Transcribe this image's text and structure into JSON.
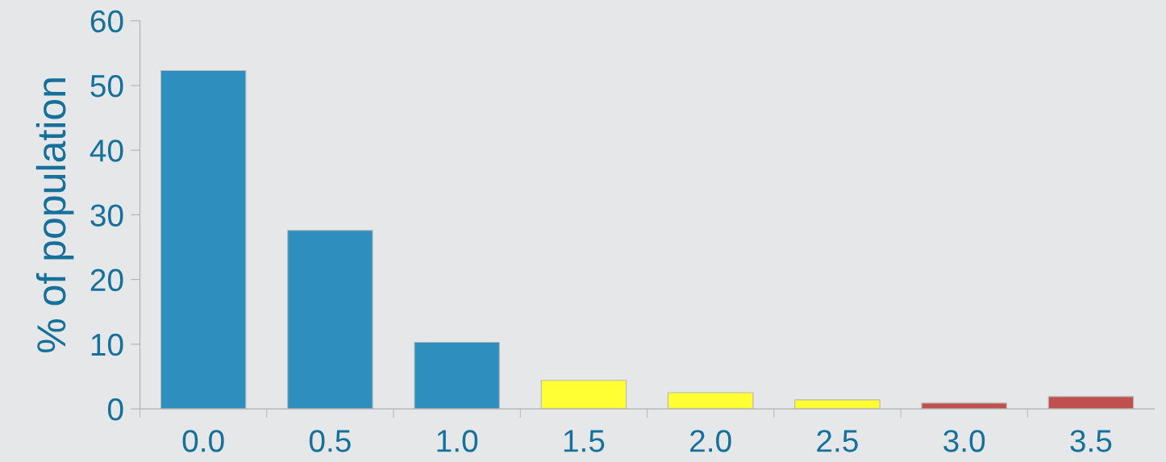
{
  "chart_data": {
    "type": "bar",
    "ylabel": "% of population",
    "categories": [
      "0.0",
      "0.5",
      "1.0",
      "1.5",
      "2.0",
      "2.5",
      "3.0",
      "3.5"
    ],
    "values": [
      52.3,
      27.6,
      10.3,
      4.4,
      2.5,
      1.4,
      0.9,
      1.9
    ],
    "colors": [
      "#2e8fbf",
      "#2e8fbf",
      "#2e8fbf",
      "#ffff33",
      "#ffff33",
      "#ffff33",
      "#c0504d",
      "#c0504d"
    ],
    "ylim": [
      0,
      60
    ],
    "yticks": [
      0,
      10,
      20,
      30,
      40,
      50,
      60
    ],
    "grid": false
  }
}
